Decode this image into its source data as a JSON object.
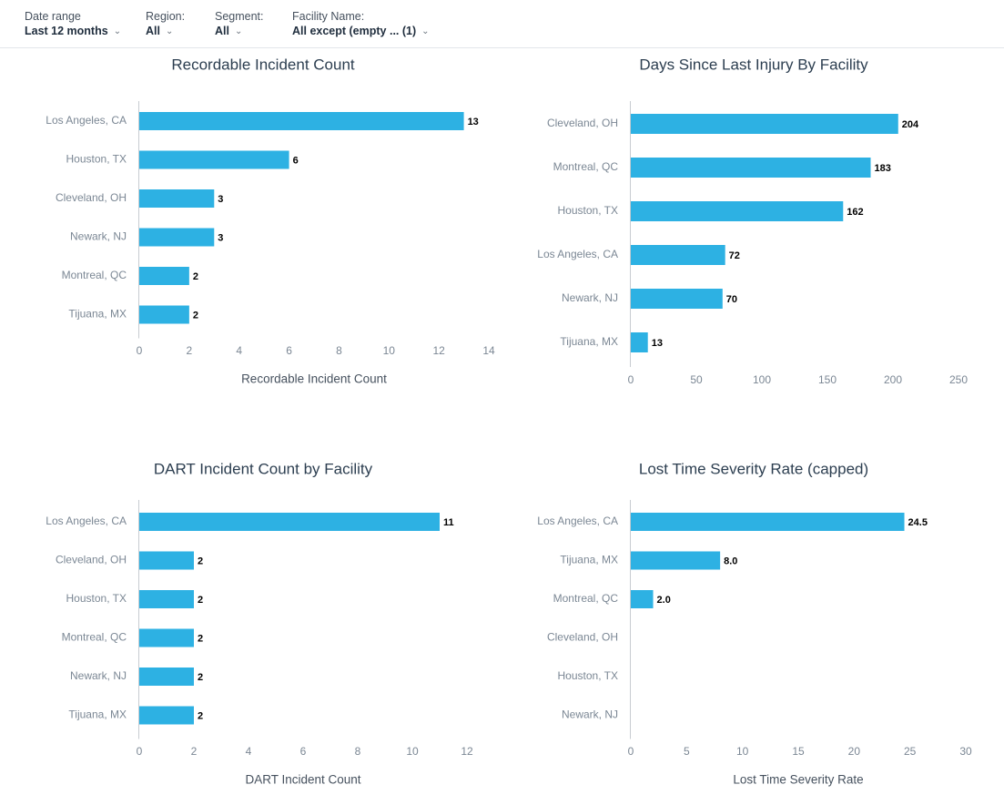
{
  "filters": [
    {
      "label": "Date range",
      "value": "Last 12 months"
    },
    {
      "label": "Region:",
      "value": "All"
    },
    {
      "label": "Segment:",
      "value": "All"
    },
    {
      "label": "Facility Name:",
      "value": "All except (empty ... (1)"
    }
  ],
  "colors": {
    "bar": "#2db1e3",
    "axis": "#c8ccd1"
  },
  "chart_data": [
    {
      "type": "bar",
      "orientation": "horizontal",
      "title": "Recordable Incident Count",
      "xlabel": "Recordable Incident Count",
      "ylabel": "",
      "categories": [
        "Los Angeles, CA",
        "Houston, TX",
        "Cleveland, OH",
        "Newark, NJ",
        "Montreal, QC",
        "Tijuana, MX"
      ],
      "values": [
        13,
        6,
        3,
        3,
        2,
        2
      ],
      "value_labels": [
        "13",
        "6",
        "3",
        "3",
        "2",
        "2"
      ],
      "ticks": [
        0,
        2,
        4,
        6,
        8,
        10,
        12,
        14
      ],
      "xlim": [
        0,
        14
      ],
      "grid": false,
      "legend": "none"
    },
    {
      "type": "bar",
      "orientation": "horizontal",
      "title": "Days Since Last Injury By Facility",
      "xlabel": "",
      "ylabel": "",
      "categories": [
        "Cleveland, OH",
        "Montreal, QC",
        "Houston, TX",
        "Los Angeles, CA",
        "Newark, NJ",
        "Tijuana, MX"
      ],
      "values": [
        204,
        183,
        162,
        72,
        70,
        13
      ],
      "value_labels": [
        "204",
        "183",
        "162",
        "72",
        "70",
        "13"
      ],
      "ticks": [
        0,
        50,
        100,
        150,
        200,
        250
      ],
      "xlim": [
        0,
        250
      ],
      "grid": false,
      "legend": "none"
    },
    {
      "type": "bar",
      "orientation": "horizontal",
      "title": "DART Incident Count by Facility",
      "xlabel": "DART Incident Count",
      "ylabel": "",
      "categories": [
        "Los Angeles, CA",
        "Cleveland, OH",
        "Houston, TX",
        "Montreal, QC",
        "Newark, NJ",
        "Tijuana, MX"
      ],
      "values": [
        11,
        2,
        2,
        2,
        2,
        2
      ],
      "value_labels": [
        "11",
        "2",
        "2",
        "2",
        "2",
        "2"
      ],
      "ticks": [
        0,
        2,
        4,
        6,
        8,
        10,
        12
      ],
      "xlim": [
        0,
        12.5
      ],
      "grid": false,
      "legend": "none"
    },
    {
      "type": "bar",
      "orientation": "horizontal",
      "title": "Lost Time Severity Rate (capped)",
      "xlabel": "Lost Time Severity Rate",
      "ylabel": "",
      "categories": [
        "Los Angeles, CA",
        "Tijuana, MX",
        "Montreal, QC",
        "Cleveland, OH",
        "Houston, TX",
        "Newark, NJ"
      ],
      "values": [
        24.5,
        8.0,
        2.0,
        0,
        0,
        0
      ],
      "value_labels": [
        "24.5",
        "8.0",
        "2.0",
        "",
        "",
        ""
      ],
      "ticks": [
        0,
        5,
        10,
        15,
        20,
        25,
        30
      ],
      "xlim": [
        0,
        30
      ],
      "grid": false,
      "legend": "none"
    }
  ]
}
